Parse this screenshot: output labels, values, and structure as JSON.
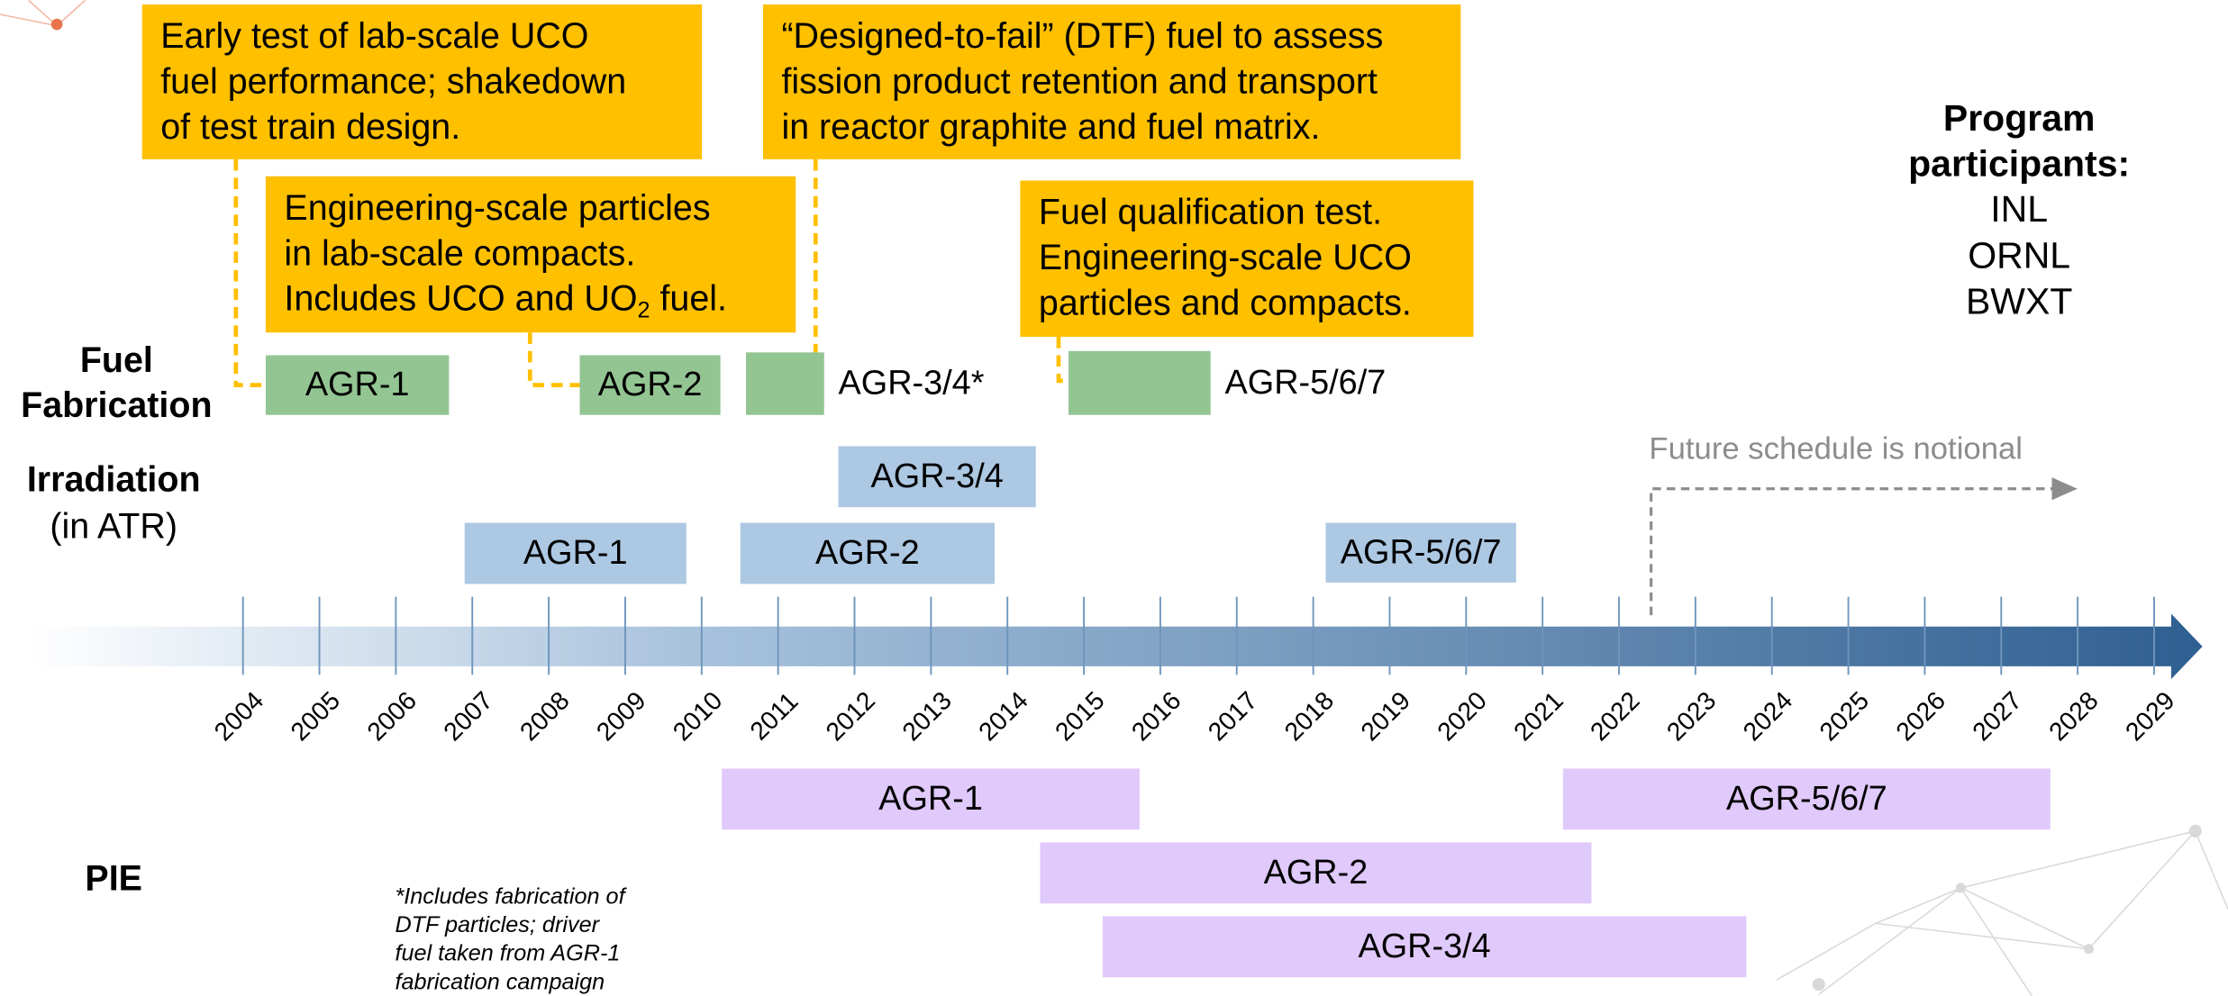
{
  "fuel_fabrication": {
    "label_lines": [
      "Fuel",
      "Fabrication"
    ],
    "items": [
      "AGR-1",
      "AGR-2",
      "AGR-3/4*",
      "AGR-5/6/7"
    ]
  },
  "irradiation": {
    "label": "Irradiation",
    "sublabel": "(in ATR)",
    "items": [
      "AGR-1",
      "AGR-2",
      "AGR-3/4",
      "AGR-5/6/7"
    ]
  },
  "pie": {
    "label": "PIE",
    "items": [
      "AGR-1",
      "AGR-5/6/7",
      "AGR-2",
      "AGR-3/4"
    ]
  },
  "callouts": [
    {
      "lines": [
        "Early test of lab-scale UCO",
        "fuel performance; shakedown",
        "of test train design."
      ]
    },
    {
      "lines": [
        "Engineering-scale particles",
        "in lab-scale compacts.",
        {
          "text": "Includes UCO and UO",
          "sub": "2",
          "tail": " fuel."
        }
      ]
    },
    {
      "lines": [
        "“Designed-to-fail” (DTF) fuel to assess",
        "fission product retention and transport",
        "in reactor graphite and fuel matrix."
      ]
    },
    {
      "lines": [
        "Fuel qualification test.",
        "Engineering-scale UCO",
        "particles and compacts."
      ]
    }
  ],
  "timeline": {
    "years": [
      2004,
      2005,
      2006,
      2007,
      2008,
      2009,
      2010,
      2011,
      2012,
      2013,
      2014,
      2015,
      2016,
      2017,
      2018,
      2019,
      2020,
      2021,
      2022,
      2023,
      2024,
      2025,
      2026,
      2027,
      2028,
      2029
    ]
  },
  "note": "Future schedule is notional",
  "footnote": [
    "*Includes fabrication of",
    "DTF particles; driver",
    "fuel taken from AGR-1",
    "fabrication campaign"
  ],
  "participants": {
    "title_lines": [
      "Program",
      "participants:"
    ],
    "names": [
      "INL",
      "ORNL",
      "BWXT"
    ]
  }
}
